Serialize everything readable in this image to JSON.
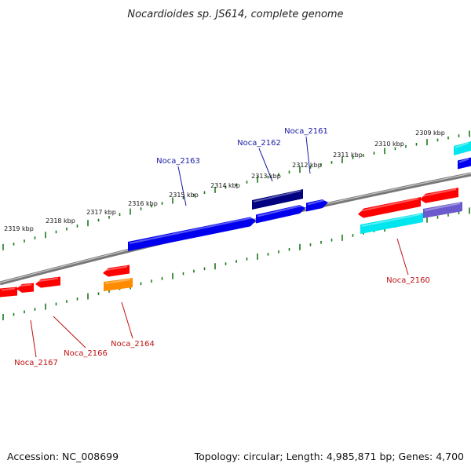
{
  "title": "Nocardioides sp. JS614, complete genome",
  "footer": {
    "accession": "Accession: NC_008699",
    "summary": "Topology: circular; Length: 4,985,871 bp; Genes: 4,700"
  },
  "colors": {
    "backbone": "#888888",
    "ticks": "#1a7a1a",
    "forward_label": "#1a1aa6",
    "reverse_label": "#c01010",
    "gene_red": "#ff0000",
    "gene_blue": "#0000ee",
    "gene_navy": "#000080",
    "gene_cyan": "#00e5ee",
    "gene_orange": "#ff8c00",
    "gene_slate": "#6a5acd"
  },
  "ruler": {
    "labels": [
      "2309 kbp",
      "2310 kbp",
      "2311 kbp",
      "2312 kbp",
      "2313 kbp",
      "2314 kbp",
      "2315 kbp",
      "2316 kbp",
      "2317 kbp",
      "2318 kbp",
      "2319 kbp"
    ]
  },
  "gene_labels": {
    "forward": [
      "Noca_2163",
      "Noca_2162",
      "Noca_2161"
    ],
    "reverse": [
      "Noca_2160",
      "Noca_2164",
      "Noca_2166",
      "Noca_2167"
    ]
  }
}
